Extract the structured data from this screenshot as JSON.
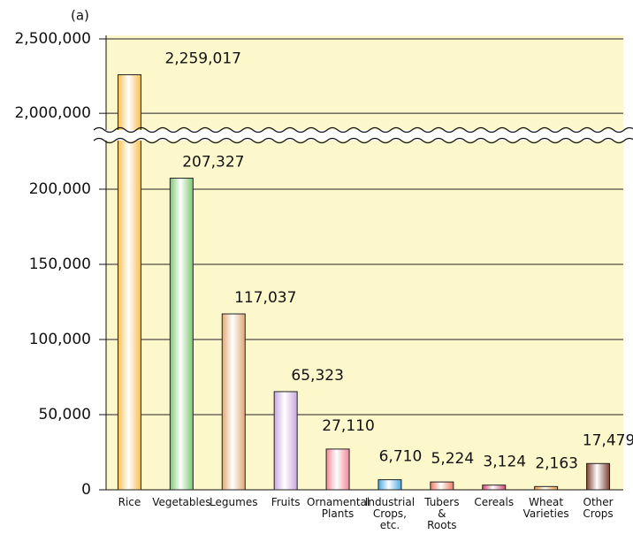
{
  "chart_data": {
    "type": "bar",
    "title": "(a)",
    "categories": [
      "Rice",
      "Vegetables",
      "Legumes",
      "Fruits",
      "Ornamental\nPlants",
      "Industrial\nCrops,\netc.",
      "Tubers\n&\nRoots",
      "Cereals",
      "Wheat\nVarieties",
      "Other\nCrops"
    ],
    "values": [
      2259017,
      207327,
      117037,
      65323,
      27110,
      6710,
      5224,
      3124,
      2163,
      17479
    ],
    "value_labels": [
      "2,259,017",
      "207,327",
      "117,037",
      "65,323",
      "27,110",
      "6,710",
      "5,224",
      "3,124",
      "2,163",
      "17,479"
    ],
    "colors": [
      "#f5c050",
      "#7cc870",
      "#e0a878",
      "#c8a8e0",
      "#f08898",
      "#4aa8e0",
      "#f07860",
      "#d04878",
      "#f09830",
      "#7a4030"
    ],
    "ylim": [
      0,
      230000
    ],
    "yticks": [
      0,
      {
        "value": 50000,
        "label": "50,000"
      },
      {
        "value": 100000,
        "label": "100,000"
      },
      {
        "value": 150000,
        "label": "150,000"
      },
      {
        "value": 200000,
        "label": "200,000"
      }
    ],
    "break_ylim": [
      1900000,
      2500000
    ],
    "break_yticks": [
      {
        "value": 2000000,
        "label": "2,000,000"
      },
      {
        "value": 2500000,
        "label": "2,500,000"
      }
    ],
    "grid": true,
    "background": "#fdf7cc"
  }
}
